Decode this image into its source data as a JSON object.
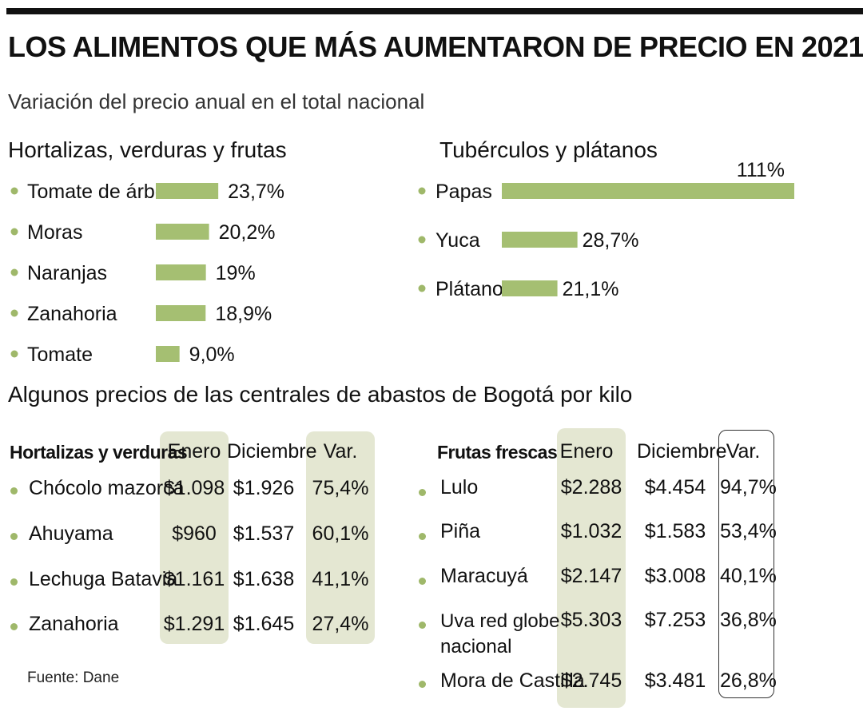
{
  "title": "LOS ALIMENTOS QUE MÁS AUMENTARON DE PRECIO EN 2021",
  "subtitle": "Variación del precio anual en el total nacional",
  "colors": {
    "bar": "#a5bf72",
    "bullet": "#9fb86a",
    "column_highlight": "#e4e7d2",
    "rule": "#111111"
  },
  "chart_data": [
    {
      "type": "bar",
      "orientation": "horizontal",
      "title": "Hortalizas, verduras y frutas",
      "categories": [
        "Tomate de árbol",
        "Moras",
        "Naranjas",
        "Zanahoria",
        "Tomate"
      ],
      "values": [
        23.7,
        20.2,
        19.0,
        18.9,
        9.0
      ],
      "value_labels": [
        "23,7%",
        "20,2%",
        "19%",
        "18,9%",
        "9,0%"
      ],
      "xlim": [
        0,
        111
      ]
    },
    {
      "type": "bar",
      "orientation": "horizontal",
      "title": "Tubérculos y plátanos",
      "categories": [
        "Papas",
        "Yuca",
        "Plátanos"
      ],
      "values": [
        111,
        28.7,
        21.1
      ],
      "value_labels": [
        "111%",
        "28,7%",
        "21,1%"
      ],
      "xlim": [
        0,
        111
      ]
    }
  ],
  "prices": {
    "title": "Algunos precios de las centrales de abastos de Bogotá por kilo",
    "left": {
      "heading": "Hortalizas y verduras",
      "col_enero": "Enero",
      "col_diciembre": "Diciembre",
      "col_var": "Var.",
      "rows": [
        {
          "name": "Chócolo mazorca",
          "enero": "$1.098",
          "diciembre": "$1.926",
          "var": "75,4%"
        },
        {
          "name": "Ahuyama",
          "enero": "$960",
          "diciembre": "$1.537",
          "var": "60,1%"
        },
        {
          "name": "Lechuga Batavia",
          "enero": "$1.161",
          "diciembre": "$1.638",
          "var": "41,1%"
        },
        {
          "name": "Zanahoria",
          "enero": "$1.291",
          "diciembre": "$1.645",
          "var": "27,4%"
        }
      ]
    },
    "right": {
      "heading": "Frutas frescas",
      "col_enero": "Enero",
      "col_diciembre": "Diciembre",
      "col_var": "Var.",
      "rows": [
        {
          "name": "Lulo",
          "name2": "",
          "enero": "$2.288",
          "diciembre": "$4.454",
          "var": "94,7%"
        },
        {
          "name": "Piña",
          "name2": "",
          "enero": "$1.032",
          "diciembre": "$1.583",
          "var": "53,4%"
        },
        {
          "name": "Maracuyá",
          "name2": "",
          "enero": "$2.147",
          "diciembre": "$3.008",
          "var": "40,1%"
        },
        {
          "name": "Uva red globe",
          "name2": "nacional",
          "enero": "$5.303",
          "diciembre": "$7.253",
          "var": "36,8%"
        },
        {
          "name": "Mora de Castilla",
          "name2": "",
          "enero": "$2.745",
          "diciembre": "$3.481",
          "var": "26,8%"
        }
      ]
    }
  },
  "source": "Fuente: Dane"
}
